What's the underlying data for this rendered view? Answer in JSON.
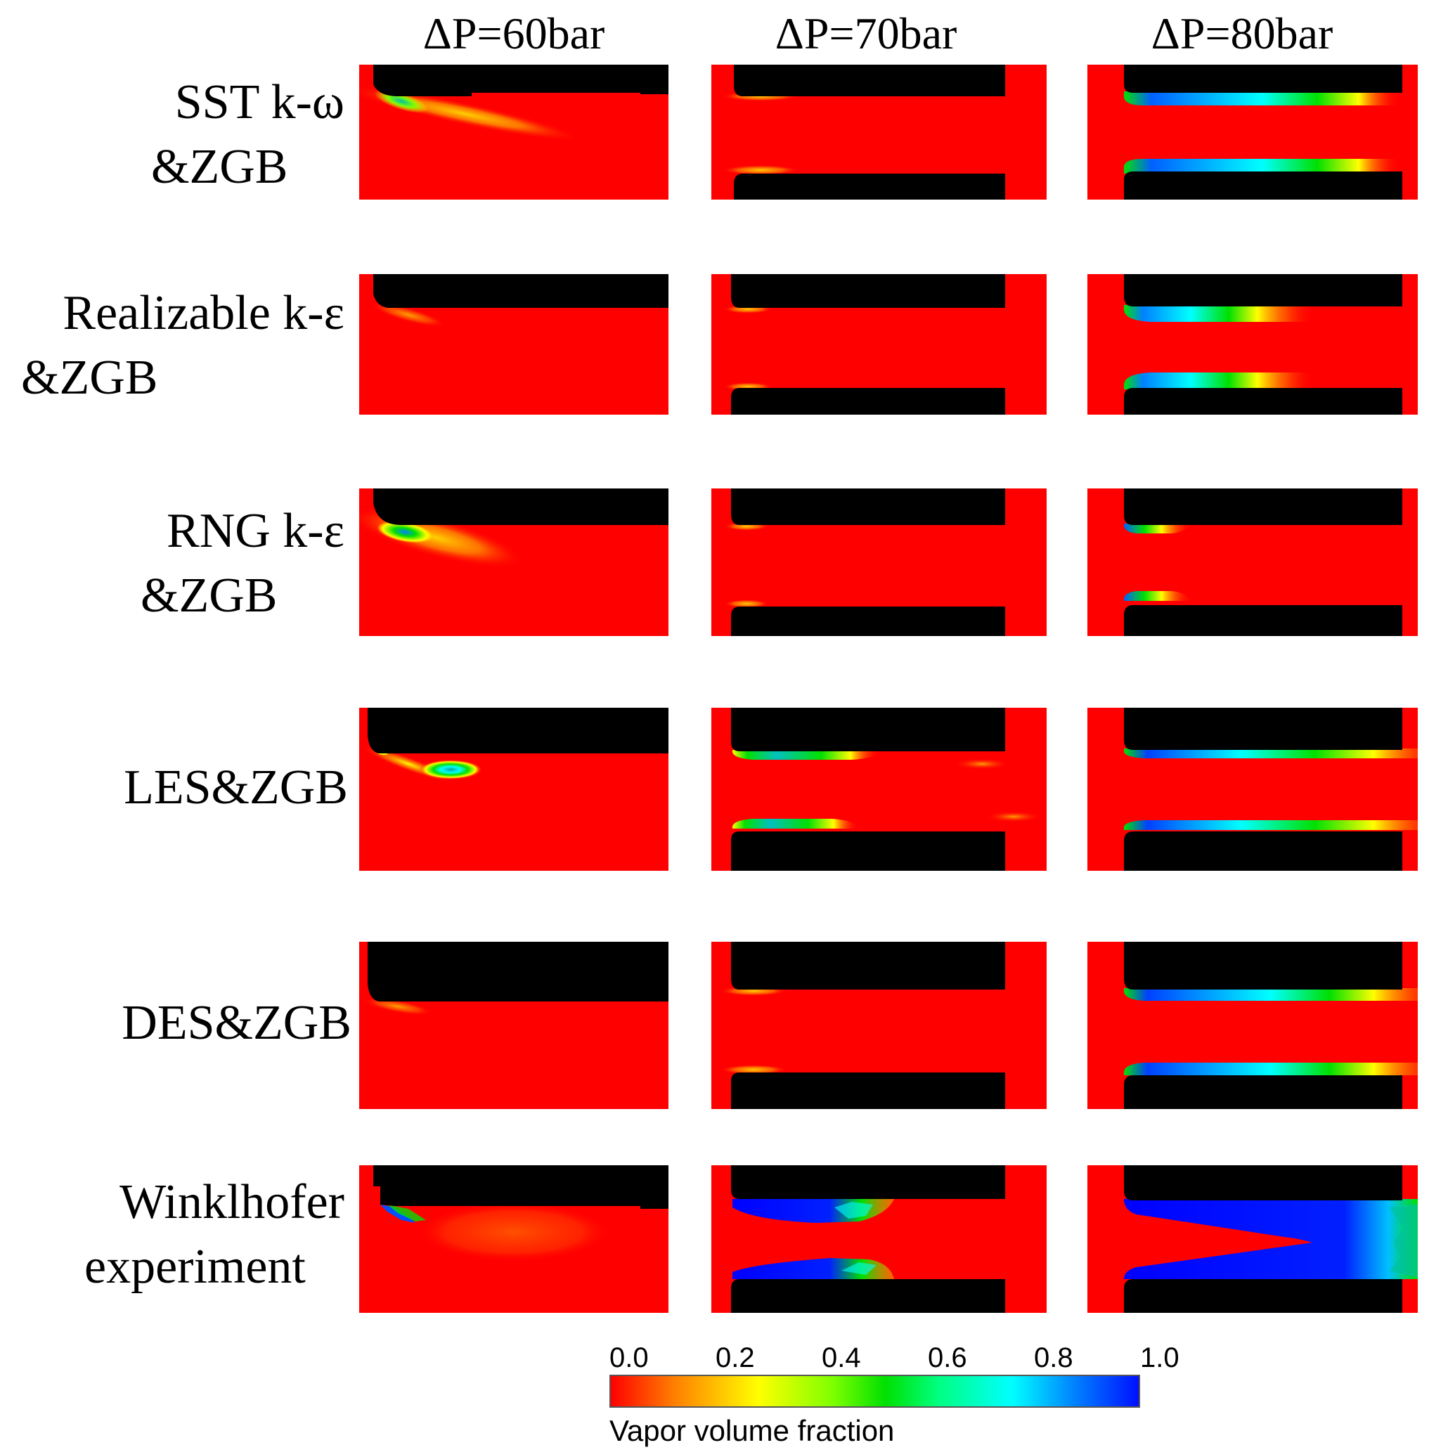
{
  "columns": [
    "ΔP=60bar",
    "ΔP=70bar",
    "ΔP=80bar"
  ],
  "rows": [
    {
      "line1": "SST k-ω",
      "line2": "&ZGB"
    },
    {
      "line1": "Realizable k-ε",
      "line2": "&ZGB"
    },
    {
      "line1": "RNG k-ε",
      "line2": "&ZGB"
    },
    {
      "line1": "LES&ZGB",
      "line2": ""
    },
    {
      "line1": "DES&ZGB",
      "line2": ""
    },
    {
      "line1": "Winklhofer",
      "line2": "experiment"
    }
  ],
  "legend": {
    "ticks": [
      "0.0",
      "0.2",
      "0.4",
      "0.6",
      "0.8",
      "1.0"
    ],
    "title": "Vapor volume fraction",
    "colors": {
      "low": "#ff0000",
      "mid": "#00e000",
      "high": "#0010ff"
    }
  }
}
